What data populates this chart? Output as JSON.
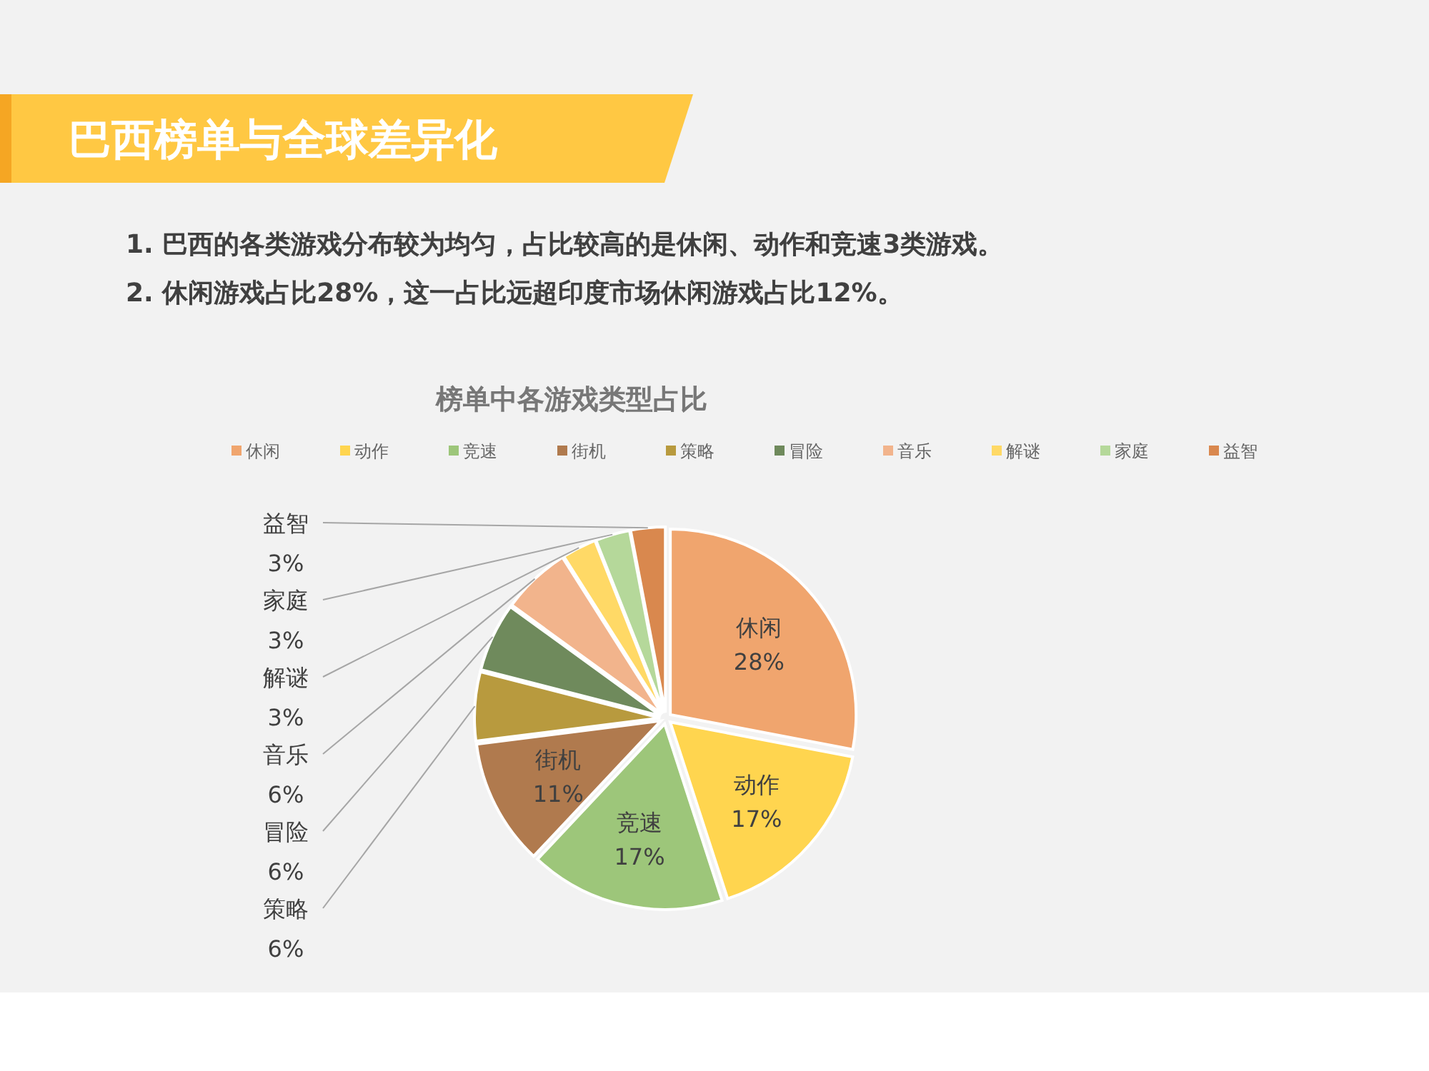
{
  "chart_data": {
    "type": "pie",
    "title": "巴西榜单与全球差异化",
    "subtitle": "榜单中各游戏类型占比",
    "annotations": [
      "1. 巴西的各类游戏分布较为均匀，占比较高的是休闲、动作和竞速3类游戏。",
      "2. 休闲游戏占比28%，这一占比远超印度市场休闲游戏占比12%。"
    ],
    "categories": [
      "休闲",
      "动作",
      "竞速",
      "街机",
      "策略",
      "冒险",
      "音乐",
      "解谜",
      "家庭",
      "益智"
    ],
    "values": [
      28,
      17,
      17,
      11,
      6,
      6,
      6,
      3,
      3,
      3
    ],
    "value_labels": [
      "28%",
      "17%",
      "17%",
      "11%",
      "6%",
      "6%",
      "6%",
      "3%",
      "3%",
      "3%"
    ],
    "colors": [
      "#f0a56e",
      "#ffd54f",
      "#9dc67a",
      "#b07a4e",
      "#b89a3e",
      "#6f8a5c",
      "#f2b48c",
      "#ffd966",
      "#b5d89a",
      "#d9884e"
    ],
    "legend": "top"
  }
}
